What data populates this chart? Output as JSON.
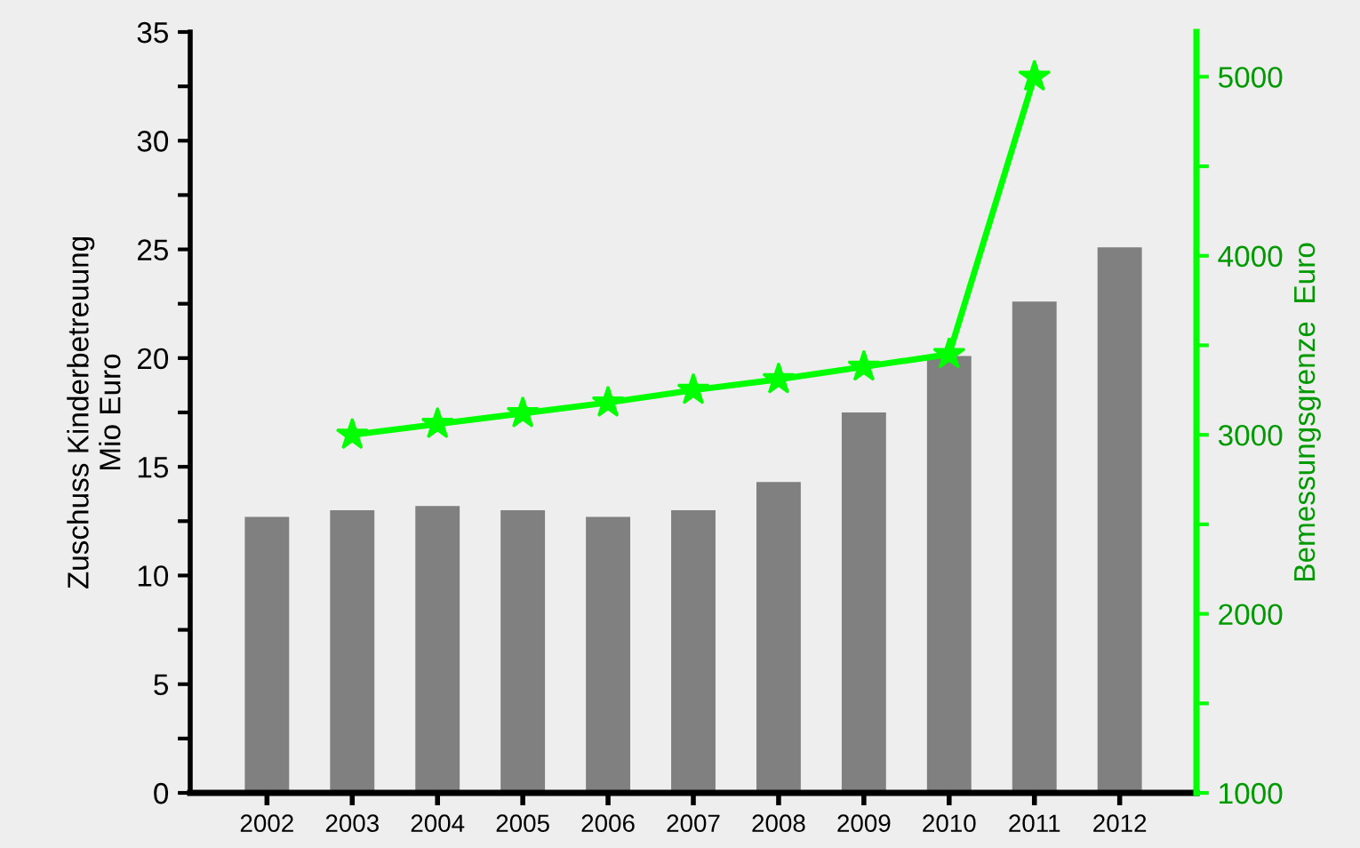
{
  "chart_data": {
    "type": "bar",
    "xlabel": null,
    "ylabel": "Zuschuss Kinderbetreuung\nMio Euro",
    "y2label": "Bemessungsgrenze  Euro",
    "categories": [
      "2002",
      "2003",
      "2004",
      "2005",
      "2006",
      "2007",
      "2008",
      "2009",
      "2010",
      "2011",
      "2012"
    ],
    "series": [
      {
        "color": "#808080",
        "values": [
          12.7,
          13.0,
          13.2,
          13.0,
          12.7,
          13.0,
          14.3,
          17.5,
          20.1,
          22.6,
          25.1
        ]
      },
      {
        "type": "line",
        "axis": "y2",
        "color": "#00ff00",
        "marker": "star",
        "line_style": "solid",
        "values": [
          null,
          3000,
          3060,
          3120,
          3180,
          3250,
          3310,
          3380,
          3450,
          5000,
          null
        ]
      }
    ],
    "ylim": [
      0,
      35
    ],
    "yticks": [
      0,
      {
        "value": 2.5,
        "label": null
      },
      5,
      {
        "value": 7.5,
        "label": null
      },
      10,
      {
        "value": 12.5,
        "label": null
      },
      15,
      {
        "value": 17.5,
        "label": null
      },
      20,
      {
        "value": 22.5,
        "label": null
      },
      25,
      {
        "value": 27.5,
        "label": null
      },
      30,
      {
        "value": 32.5,
        "label": null
      },
      35
    ],
    "y2lim": [
      1000,
      5250
    ],
    "y2ticks": [
      1000,
      {
        "value": 1500,
        "label": null
      },
      2000,
      {
        "value": 2500,
        "label": null
      },
      3000,
      {
        "value": 3500,
        "label": null
      },
      4000,
      {
        "value": 4500,
        "label": null
      },
      5000
    ],
    "grid": false,
    "legend": false
  }
}
